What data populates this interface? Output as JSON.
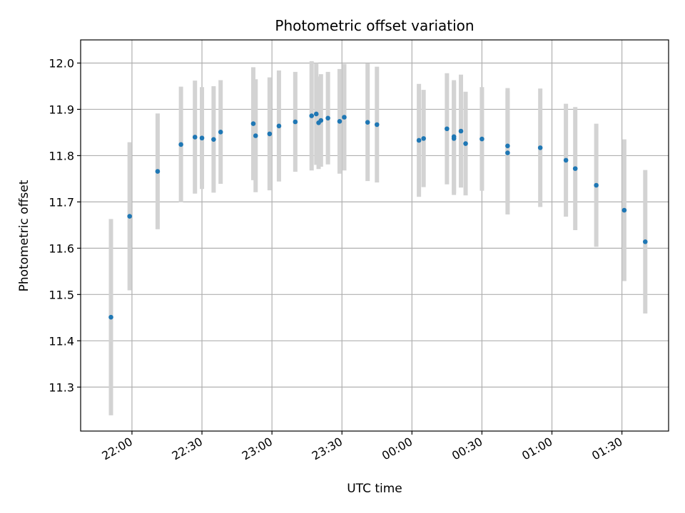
{
  "chart_data": {
    "type": "scatter",
    "title": "Photometric offset variation",
    "xlabel": "UTC time",
    "ylabel": "Photometric offset",
    "x_unit": "UTC time (HH:MM)",
    "xlim": [
      "21:38",
      "01:50"
    ],
    "ylim": [
      11.205,
      12.05
    ],
    "grid": true,
    "legend": "none",
    "x_ticks": [
      "22:00",
      "22:30",
      "23:00",
      "23:30",
      "00:00",
      "00:30",
      "01:00",
      "01:30"
    ],
    "y_ticks": [
      11.3,
      11.4,
      11.5,
      11.6,
      11.7,
      11.8,
      11.9,
      12.0
    ],
    "y_tick_labels": [
      "11.3",
      "11.4",
      "11.5",
      "11.6",
      "11.7",
      "11.8",
      "11.9",
      "12.0"
    ],
    "colors": {
      "point": "#1f77b4",
      "errorbar": "#d3d3d3",
      "grid": "#b0b0b0"
    },
    "points": [
      {
        "t": "21:51",
        "y": 11.451,
        "err": 0.212
      },
      {
        "t": "21:59",
        "y": 11.669,
        "err": 0.16
      },
      {
        "t": "22:11",
        "y": 11.766,
        "err": 0.125
      },
      {
        "t": "22:21",
        "y": 11.824,
        "err": 0.125
      },
      {
        "t": "22:27",
        "y": 11.84,
        "err": 0.122
      },
      {
        "t": "22:30",
        "y": 11.838,
        "err": 0.11
      },
      {
        "t": "22:35",
        "y": 11.835,
        "err": 0.115
      },
      {
        "t": "22:38",
        "y": 11.851,
        "err": 0.112
      },
      {
        "t": "22:52",
        "y": 11.869,
        "err": 0.122
      },
      {
        "t": "22:53",
        "y": 11.843,
        "err": 0.122
      },
      {
        "t": "22:59",
        "y": 11.847,
        "err": 0.122
      },
      {
        "t": "23:03",
        "y": 11.864,
        "err": 0.12
      },
      {
        "t": "23:10",
        "y": 11.873,
        "err": 0.108
      },
      {
        "t": "23:17",
        "y": 11.886,
        "err": 0.118
      },
      {
        "t": "23:19",
        "y": 11.89,
        "err": 0.11
      },
      {
        "t": "23:20",
        "y": 11.871,
        "err": 0.1
      },
      {
        "t": "23:21",
        "y": 11.876,
        "err": 0.1
      },
      {
        "t": "23:24",
        "y": 11.881,
        "err": 0.1
      },
      {
        "t": "23:29",
        "y": 11.874,
        "err": 0.113
      },
      {
        "t": "23:31",
        "y": 11.883,
        "err": 0.115
      },
      {
        "t": "23:41",
        "y": 11.872,
        "err": 0.127
      },
      {
        "t": "23:45",
        "y": 11.867,
        "err": 0.125
      },
      {
        "t": "00:03",
        "y": 11.833,
        "err": 0.122
      },
      {
        "t": "00:05",
        "y": 11.837,
        "err": 0.105
      },
      {
        "t": "00:15",
        "y": 11.858,
        "err": 0.12
      },
      {
        "t": "00:18",
        "y": 11.837,
        "err": 0.122
      },
      {
        "t": "00:18",
        "y": 11.841,
        "err": 0.122
      },
      {
        "t": "00:21",
        "y": 11.853,
        "err": 0.122
      },
      {
        "t": "00:23",
        "y": 11.826,
        "err": 0.112
      },
      {
        "t": "00:30",
        "y": 11.836,
        "err": 0.112
      },
      {
        "t": "00:41",
        "y": 11.806,
        "err": 0.133
      },
      {
        "t": "00:41",
        "y": 11.821,
        "err": 0.125
      },
      {
        "t": "00:55",
        "y": 11.817,
        "err": 0.128
      },
      {
        "t": "01:06",
        "y": 11.79,
        "err": 0.122
      },
      {
        "t": "01:10",
        "y": 11.772,
        "err": 0.133
      },
      {
        "t": "01:19",
        "y": 11.736,
        "err": 0.133
      },
      {
        "t": "01:31",
        "y": 11.682,
        "err": 0.153
      },
      {
        "t": "01:40",
        "y": 11.614,
        "err": 0.155
      }
    ]
  }
}
